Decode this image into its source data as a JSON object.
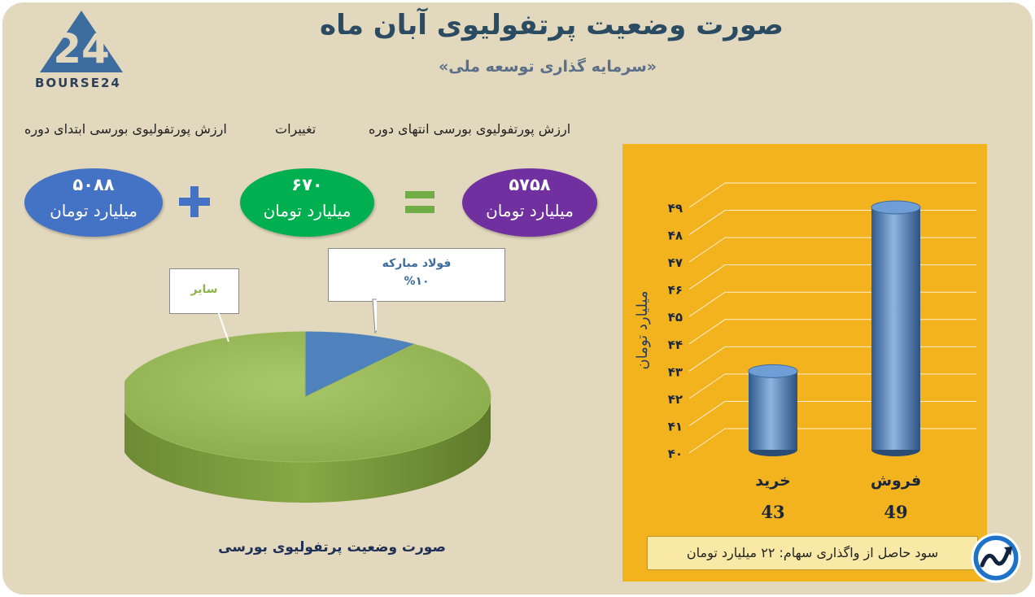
{
  "brand": {
    "logo_numeral": "24",
    "logo_text": "BOURSE24"
  },
  "header": {
    "title": "صورت وضعیت پرتفولیوی آبان ماه",
    "subtitle": "«سرمایه گذاری توسعه ملی»"
  },
  "equation": {
    "label_end": "ارزش پورتفولیوی بورسی انتهای دوره",
    "label_change": "تغییرات",
    "label_start": "ارزش پورتفولیوی بورسی ابتدای دوره",
    "end_value": "۵۷۵۸",
    "change_value": "۶۷۰",
    "start_value": "۵۰۸۸",
    "unit": "میلیارد تومان",
    "plus_sign": "+",
    "equals_sign": "=",
    "colors": {
      "end": "#7030a0",
      "change": "#00b050",
      "start": "#4472c4",
      "operator": "#4472c4",
      "equals": "#70ad47"
    }
  },
  "pie": {
    "caption": "صورت وضعیت پرتفولیوی بورسی",
    "callout_main_label": "فولاد مبارکه",
    "callout_main_pct": "%۱۰",
    "callout_other_label": "سایر"
  },
  "chart_data": [
    {
      "type": "pie",
      "title": "صورت وضعیت پرتفولیوی بورسی",
      "slices": [
        {
          "label": "فولاد مبارکه",
          "value": 10,
          "color": "#4f81bd"
        },
        {
          "label": "سایر",
          "value": 90,
          "color": "#9bbb59"
        }
      ]
    },
    {
      "type": "bar",
      "categories": [
        "خرید",
        "فروش"
      ],
      "values": [
        43,
        49
      ],
      "value_labels": [
        "43",
        "49"
      ],
      "ylabel": "میلیارد تومان",
      "ylim": [
        40,
        49
      ],
      "yticks": [
        40,
        41,
        42,
        43,
        44,
        45,
        46,
        47,
        48,
        49
      ],
      "ytick_labels": [
        "۴۰",
        "۴۱",
        "۴۲",
        "۴۳",
        "۴۴",
        "۴۵",
        "۴۶",
        "۴۷",
        "۴۸",
        "۴۹"
      ],
      "grid": true,
      "bar_color": "#4f81bd",
      "background": "#f3b31f"
    }
  ],
  "bar_chart": {
    "footer": "سود حاصل از واگذاری سهام: ۲۲ میلیارد تومان",
    "footer_icon": "trend-arrow-icon"
  }
}
